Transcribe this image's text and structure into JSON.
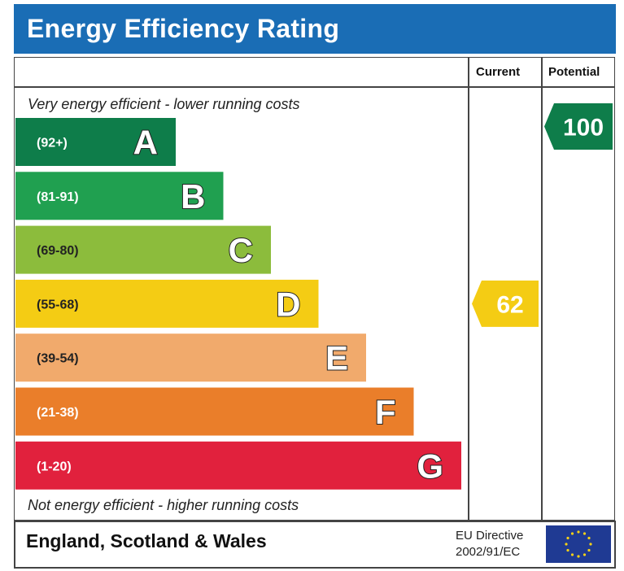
{
  "header": {
    "title": "Energy Efficiency Rating"
  },
  "columns": {
    "current": "Current",
    "potential": "Potential"
  },
  "notes": {
    "top": "Very energy efficient - lower running costs",
    "bottom": "Not energy efficient - higher running costs"
  },
  "footer": {
    "region": "England, Scotland & Wales",
    "directive_line1": "EU Directive",
    "directive_line2": "2002/91/EC",
    "flag_icon": "eu-flag-icon"
  },
  "chart_data": {
    "type": "bar",
    "title": "Energy Efficiency Rating",
    "bands": [
      {
        "letter": "A",
        "range": "(92+)",
        "min": 92,
        "max": 100,
        "color": "#0e7d4a"
      },
      {
        "letter": "B",
        "range": "(81-91)",
        "min": 81,
        "max": 91,
        "color": "#20a050"
      },
      {
        "letter": "C",
        "range": "(69-80)",
        "min": 69,
        "max": 80,
        "color": "#8cbc3c"
      },
      {
        "letter": "D",
        "range": "(55-68)",
        "min": 55,
        "max": 68,
        "color": "#f4cc14"
      },
      {
        "letter": "E",
        "range": "(39-54)",
        "min": 39,
        "max": 54,
        "color": "#f1aa6c"
      },
      {
        "letter": "F",
        "range": "(21-38)",
        "min": 21,
        "max": 38,
        "color": "#ea7e2a"
      },
      {
        "letter": "G",
        "range": "(1-20)",
        "min": 1,
        "max": 20,
        "color": "#e1213d"
      }
    ],
    "current": {
      "value": 62,
      "band": "D",
      "color": "#f4cc14"
    },
    "potential": {
      "value": 100,
      "band": "A",
      "color": "#0e7d4a"
    }
  }
}
